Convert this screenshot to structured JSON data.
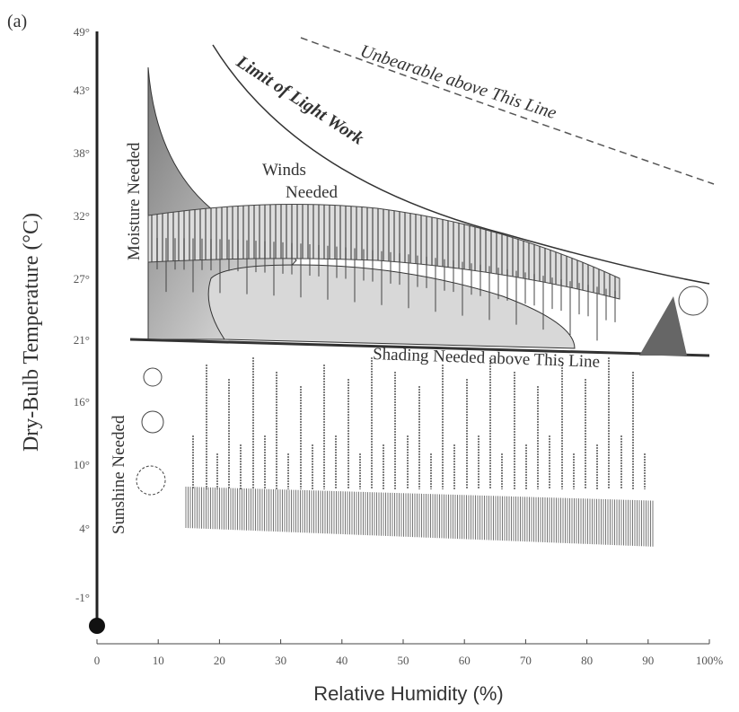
{
  "panel_label": "(a)",
  "axes": {
    "y_title": "Dry-Bulb Temperature (°C)",
    "x_title": "Relative Humidity (%)",
    "y_ticks": [
      "49°",
      "43°",
      "38°",
      "32°",
      "27°",
      "21°",
      "16°",
      "10°",
      "4°",
      "-1°"
    ],
    "x_ticks": [
      "0",
      "10",
      "20",
      "30",
      "40",
      "50",
      "60",
      "70",
      "80",
      "90",
      "100%"
    ]
  },
  "annotations": {
    "unbearable": "Unbearable above This Line",
    "light_work": "Limit of Light Work",
    "winds": [
      "Winds",
      "Needed"
    ],
    "moisture": "Moisture Needed",
    "shading": "Shading Needed above This Line",
    "sunshine": "Sunshine Needed"
  }
}
